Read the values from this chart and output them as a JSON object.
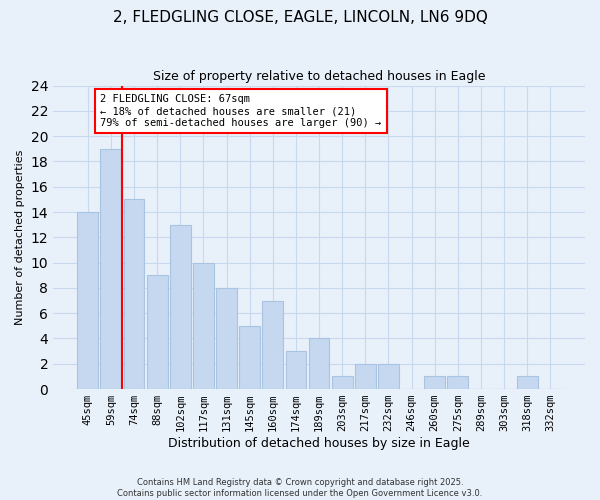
{
  "title": "2, FLEDGLING CLOSE, EAGLE, LINCOLN, LN6 9DQ",
  "subtitle": "Size of property relative to detached houses in Eagle",
  "xlabel": "Distribution of detached houses by size in Eagle",
  "ylabel": "Number of detached properties",
  "bar_labels": [
    "45sqm",
    "59sqm",
    "74sqm",
    "88sqm",
    "102sqm",
    "117sqm",
    "131sqm",
    "145sqm",
    "160sqm",
    "174sqm",
    "189sqm",
    "203sqm",
    "217sqm",
    "232sqm",
    "246sqm",
    "260sqm",
    "275sqm",
    "289sqm",
    "303sqm",
    "318sqm",
    "332sqm"
  ],
  "bar_values": [
    14,
    19,
    15,
    9,
    13,
    10,
    8,
    5,
    7,
    3,
    4,
    1,
    2,
    2,
    0,
    1,
    1,
    0,
    0,
    1,
    0
  ],
  "bar_color": "#c5d8f0",
  "bar_edge_color": "#a8c4e0",
  "vline_x": 1.5,
  "vline_color": "red",
  "annotation_text": "2 FLEDGLING CLOSE: 67sqm\n← 18% of detached houses are smaller (21)\n79% of semi-detached houses are larger (90) →",
  "annotation_box_color": "white",
  "annotation_box_edge": "red",
  "ylim": [
    0,
    24
  ],
  "yticks": [
    0,
    2,
    4,
    6,
    8,
    10,
    12,
    14,
    16,
    18,
    20,
    22,
    24
  ],
  "grid_color": "#c8d8ee",
  "bg_color": "#e8f0fa",
  "footer1": "Contains HM Land Registry data © Crown copyright and database right 2025.",
  "footer2": "Contains public sector information licensed under the Open Government Licence v3.0."
}
